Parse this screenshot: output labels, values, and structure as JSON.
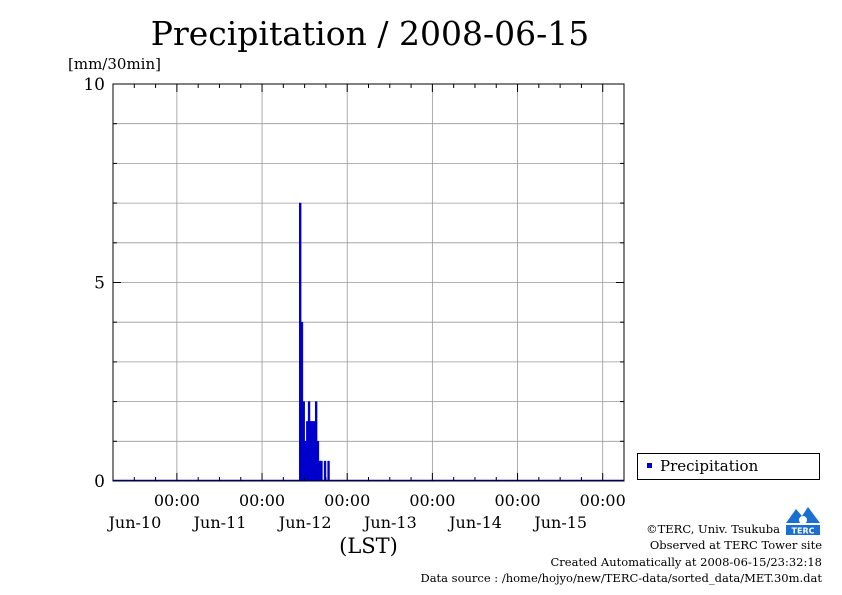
{
  "title": "Precipitation / 2008-06-15",
  "y_unit": "[mm/30min]",
  "x_axis_label": "(LST)",
  "legend": {
    "label": "Precipitation"
  },
  "credits": {
    "line1": "©TERC, Univ. Tsukuba",
    "line2": "Observed at TERC Tower site",
    "line3": "Created Automatically at 2008-06-15/23:32:18",
    "line4": "Data source : /home/hojyo/new/TERC-data/sorted_data/MET.30m.dat"
  },
  "logo_text": "TERC",
  "colors": {
    "series": "#0000cc",
    "grid": "#999999",
    "axis": "#000000"
  },
  "chart_data": {
    "type": "bar",
    "title": "Precipitation / 2008-06-15",
    "ylabel": "[mm/30min]",
    "xlabel": "(LST)",
    "ylim": [
      0,
      10
    ],
    "yticks": [
      0,
      5,
      10
    ],
    "xlim_hours": [
      -18,
      126
    ],
    "xticks": [
      {
        "hour": 0,
        "time": "00:00",
        "date": "Jun-10"
      },
      {
        "hour": 24,
        "time": "00:00",
        "date": "Jun-11"
      },
      {
        "hour": 48,
        "time": "00:00",
        "date": "Jun-12"
      },
      {
        "hour": 72,
        "time": "00:00",
        "date": "Jun-13"
      },
      {
        "hour": 96,
        "time": "00:00",
        "date": "Jun-14"
      },
      {
        "hour": 120,
        "time": "00:00",
        "date": "Jun-15"
      }
    ],
    "grid": true,
    "legend_position": "bottom-right",
    "series": [
      {
        "name": "Precipitation",
        "color": "#0000cc",
        "time_step_hours": 0.5,
        "points": [
          {
            "hour": 34.5,
            "value": 7
          },
          {
            "hour": 35.0,
            "value": 4
          },
          {
            "hour": 35.5,
            "value": 2
          },
          {
            "hour": 36.0,
            "value": 1
          },
          {
            "hour": 36.5,
            "value": 1.5
          },
          {
            "hour": 37.0,
            "value": 2
          },
          {
            "hour": 37.5,
            "value": 1.5
          },
          {
            "hour": 38.0,
            "value": 1.5
          },
          {
            "hour": 38.5,
            "value": 1.5
          },
          {
            "hour": 39.0,
            "value": 2
          },
          {
            "hour": 39.5,
            "value": 1
          },
          {
            "hour": 40.0,
            "value": 0.5
          },
          {
            "hour": 40.5,
            "value": 0.5
          },
          {
            "hour": 41.5,
            "value": 0.5
          },
          {
            "hour": 42.5,
            "value": 0.5
          }
        ]
      }
    ]
  }
}
